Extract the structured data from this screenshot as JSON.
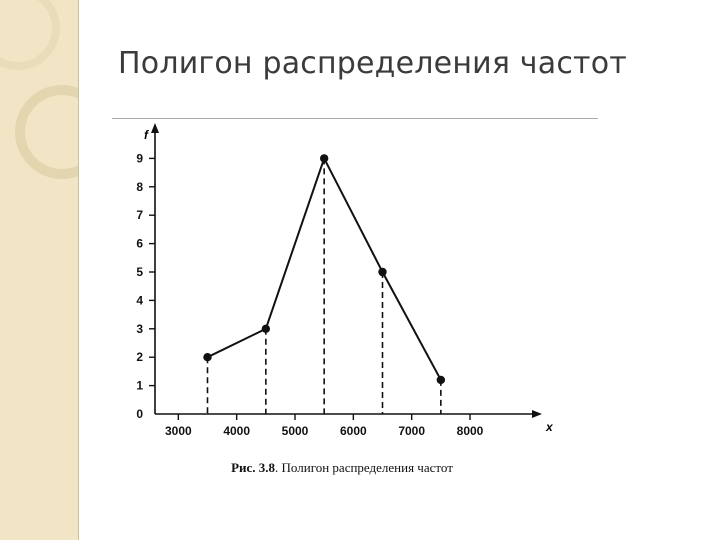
{
  "slide": {
    "title": "Полигон распределения частот"
  },
  "caption": {
    "label": "Рис. 3.8",
    "text": ". Полигон распределения частот"
  },
  "colors": {
    "sidebar": "#f1e5c6",
    "sidebar_circle": "#dfd0a8",
    "line": "#111111",
    "title": "#3b3b3b"
  },
  "chart_data": {
    "type": "line",
    "xlabel": "x",
    "ylabel": "f",
    "xlim": [
      2600,
      9200
    ],
    "ylim": [
      0,
      10
    ],
    "x_ticks": [
      3000,
      4000,
      5000,
      6000,
      7000,
      8000
    ],
    "y_ticks": [
      0,
      1,
      2,
      3,
      4,
      5,
      6,
      7,
      8,
      9
    ],
    "series": [
      {
        "x": [
          3500,
          4500,
          5500,
          6500,
          7500
        ],
        "y": [
          2,
          3,
          9,
          5,
          1.2
        ],
        "marker": "circle",
        "drop_lines": "dashed"
      }
    ],
    "grid": false
  }
}
